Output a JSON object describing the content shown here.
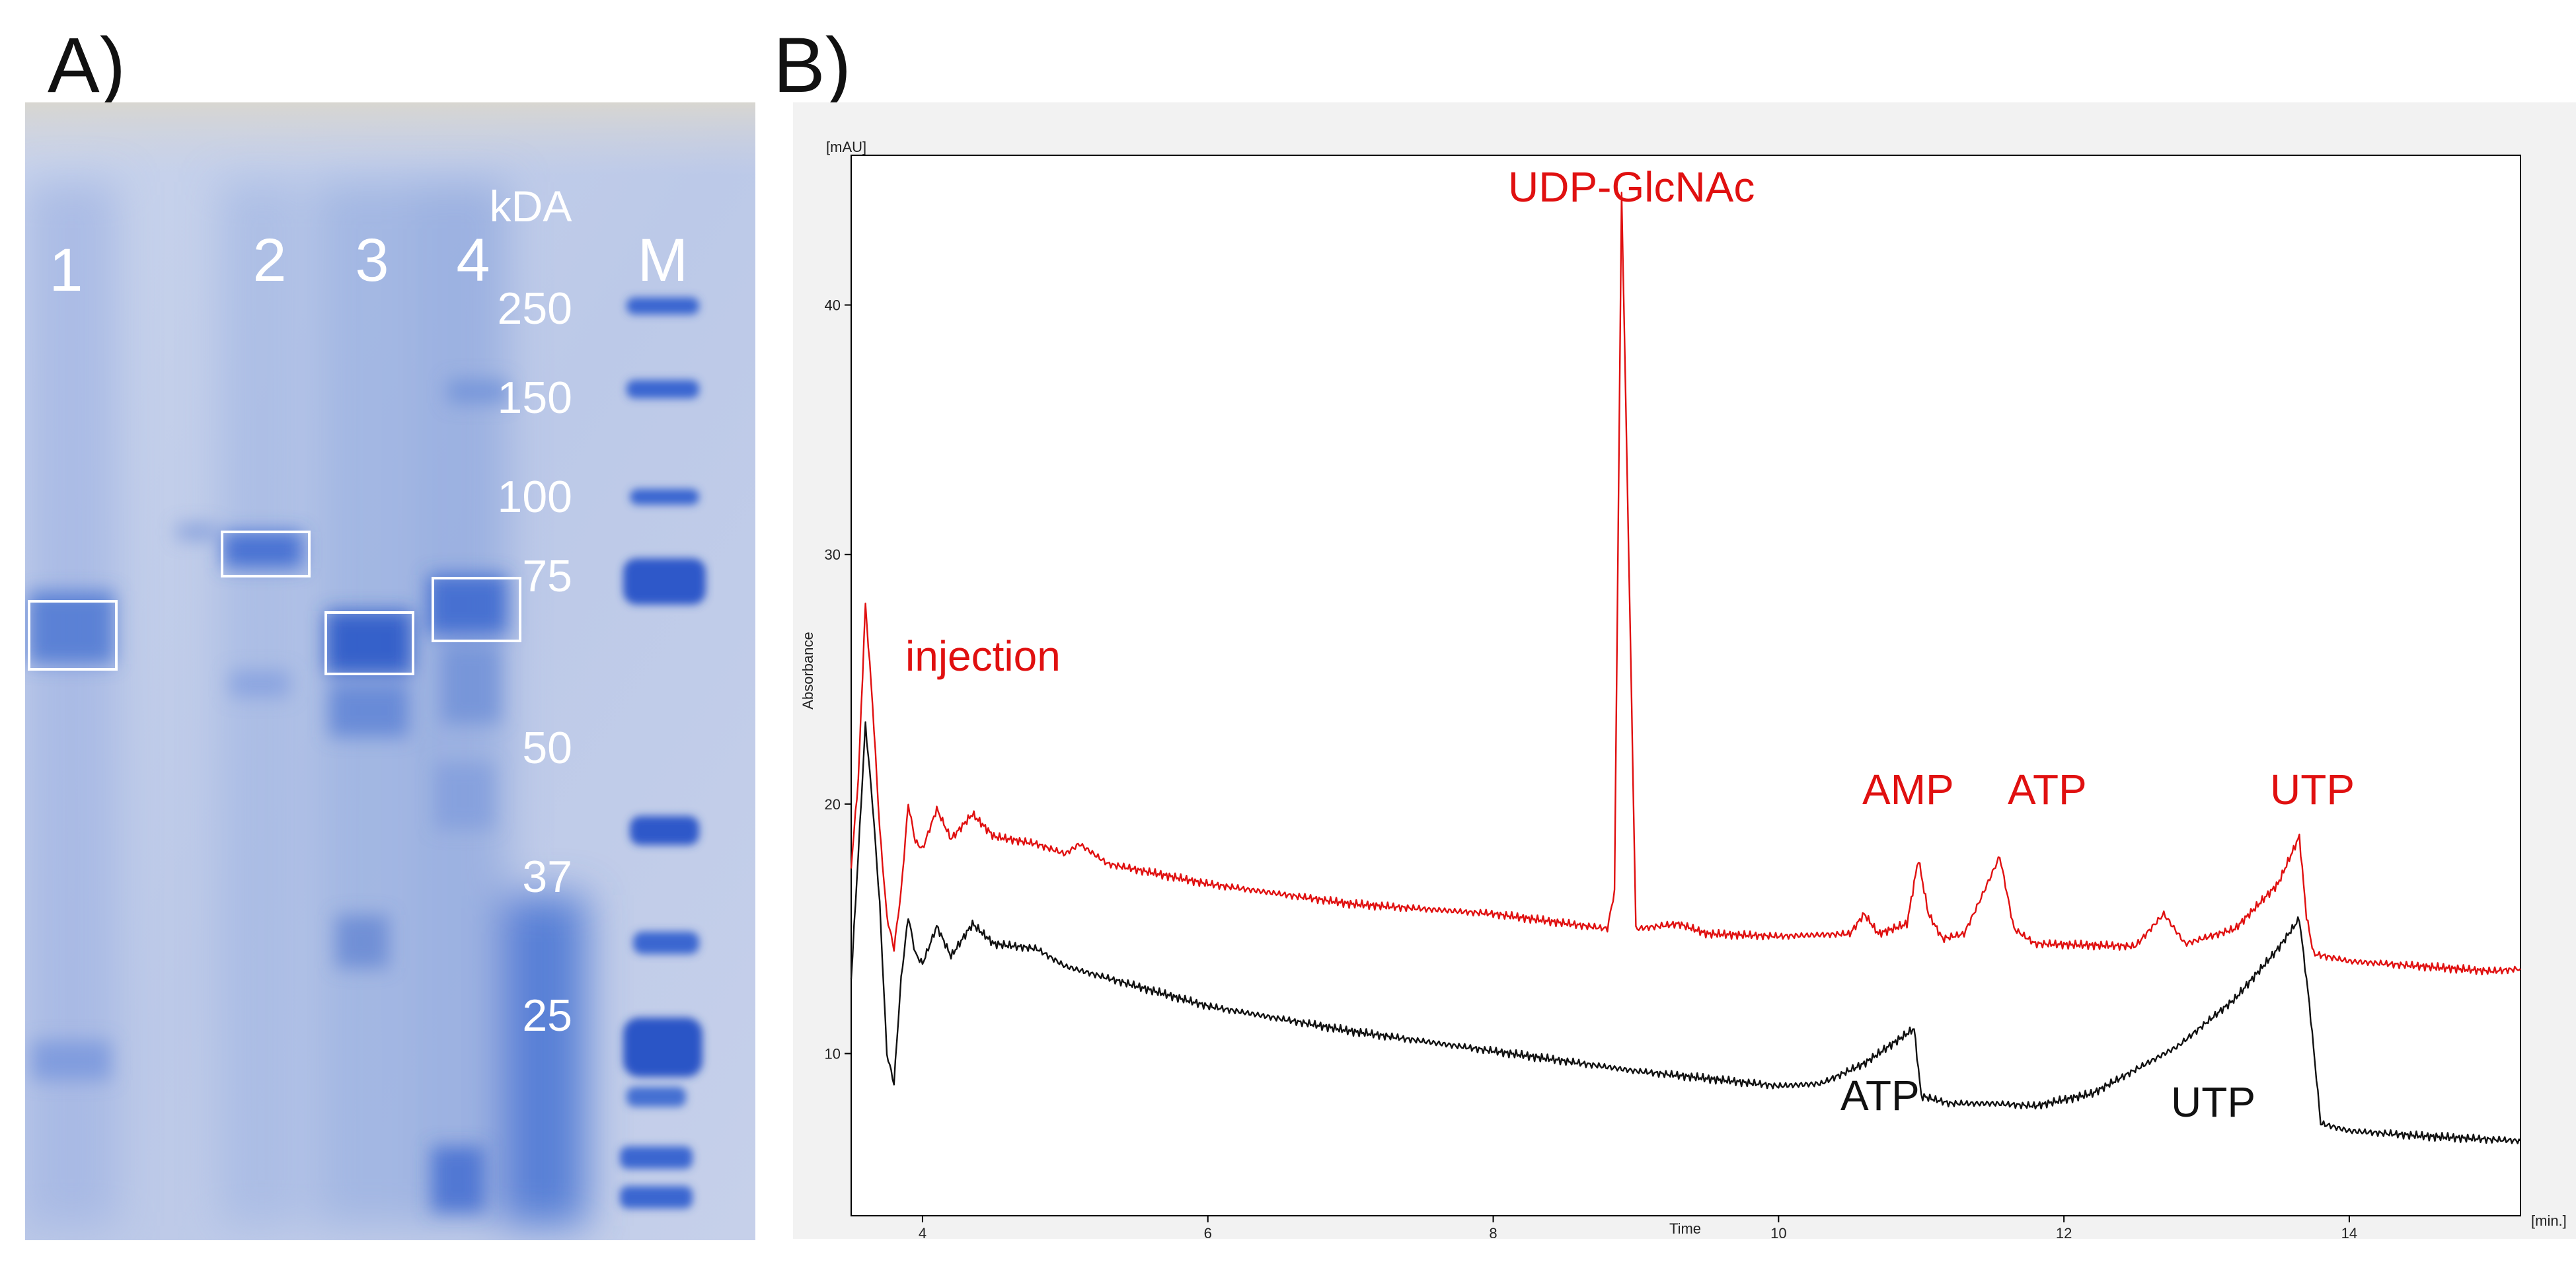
{
  "panels": {
    "a_label": "A)",
    "b_label": "B)"
  },
  "gel": {
    "lanes": [
      "1",
      "2",
      "3",
      "4",
      "M"
    ],
    "kda_label": "kDA",
    "markers": [
      "250",
      "150",
      "100",
      "75",
      "50",
      "37",
      "25"
    ],
    "colors": {
      "gel_blue": "#3f6fd0",
      "box": "#ffffff"
    }
  },
  "chart_data": {
    "type": "line",
    "xlabel": "Time",
    "ylabel": "Absorbance",
    "x_unit": "[min.]",
    "y_unit": "[mAU]",
    "xlim": [
      3.5,
      15.2
    ],
    "ylim": [
      3.5,
      46
    ],
    "x_ticks": [
      "4",
      "6",
      "8",
      "10",
      "12",
      "14"
    ],
    "y_ticks": [
      "10",
      "20",
      "30",
      "40"
    ],
    "series": [
      {
        "color": "#e01010",
        "points": [
          [
            3.5,
            17.5
          ],
          [
            3.55,
            21
          ],
          [
            3.6,
            28
          ],
          [
            3.65,
            24
          ],
          [
            3.7,
            19
          ],
          [
            3.75,
            15.5
          ],
          [
            3.8,
            14.2
          ],
          [
            3.85,
            16.5
          ],
          [
            3.9,
            20
          ],
          [
            3.95,
            18.5
          ],
          [
            4.0,
            18.2
          ],
          [
            4.1,
            19.8
          ],
          [
            4.2,
            18.6
          ],
          [
            4.35,
            19.6
          ],
          [
            4.5,
            18.7
          ],
          [
            4.8,
            18.4
          ],
          [
            5.0,
            18.0
          ],
          [
            5.1,
            18.4
          ],
          [
            5.3,
            17.6
          ],
          [
            6.0,
            16.8
          ],
          [
            7.0,
            16.0
          ],
          [
            8.0,
            15.6
          ],
          [
            8.8,
            15.0
          ],
          [
            8.85,
            16.5
          ],
          [
            8.9,
            44.5
          ],
          [
            8.95,
            30
          ],
          [
            9.0,
            15.0
          ],
          [
            9.3,
            15.2
          ],
          [
            9.5,
            14.8
          ],
          [
            10.0,
            14.7
          ],
          [
            10.5,
            14.8
          ],
          [
            10.6,
            15.6
          ],
          [
            10.7,
            14.8
          ],
          [
            10.9,
            15.2
          ],
          [
            10.98,
            17.8
          ],
          [
            11.05,
            15.6
          ],
          [
            11.15,
            14.6
          ],
          [
            11.3,
            14.8
          ],
          [
            11.4,
            16.0
          ],
          [
            11.55,
            17.9
          ],
          [
            11.65,
            15.0
          ],
          [
            11.8,
            14.4
          ],
          [
            12.5,
            14.3
          ],
          [
            12.7,
            15.6
          ],
          [
            12.85,
            14.4
          ],
          [
            13.2,
            15.0
          ],
          [
            13.5,
            16.8
          ],
          [
            13.65,
            18.7
          ],
          [
            13.7,
            15.5
          ],
          [
            13.75,
            14.0
          ],
          [
            14.0,
            13.7
          ],
          [
            15.0,
            13.3
          ],
          [
            15.2,
            13.4
          ]
        ]
      },
      {
        "color": "#111111",
        "points": [
          [
            3.5,
            13.0
          ],
          [
            3.55,
            18
          ],
          [
            3.6,
            23.2
          ],
          [
            3.65,
            20
          ],
          [
            3.7,
            16
          ],
          [
            3.75,
            10
          ],
          [
            3.8,
            8.8
          ],
          [
            3.85,
            13
          ],
          [
            3.9,
            15.5
          ],
          [
            3.95,
            14.0
          ],
          [
            4.0,
            13.6
          ],
          [
            4.1,
            15.1
          ],
          [
            4.2,
            13.9
          ],
          [
            4.35,
            15.2
          ],
          [
            4.5,
            14.4
          ],
          [
            4.8,
            14.2
          ],
          [
            5.0,
            13.5
          ],
          [
            6.0,
            11.9
          ],
          [
            7.0,
            10.9
          ],
          [
            8.0,
            10.1
          ],
          [
            9.0,
            9.3
          ],
          [
            10.0,
            8.7
          ],
          [
            10.3,
            8.8
          ],
          [
            10.6,
            9.6
          ],
          [
            10.95,
            11.0
          ],
          [
            11.0,
            8.3
          ],
          [
            11.2,
            8.0
          ],
          [
            11.5,
            8.0
          ],
          [
            11.8,
            7.9
          ],
          [
            12.2,
            8.4
          ],
          [
            12.8,
            10.3
          ],
          [
            13.2,
            12.2
          ],
          [
            13.5,
            14.2
          ],
          [
            13.65,
            15.4
          ],
          [
            13.72,
            12.0
          ],
          [
            13.8,
            7.2
          ],
          [
            14.0,
            6.9
          ],
          [
            14.5,
            6.7
          ],
          [
            15.2,
            6.5
          ]
        ]
      }
    ],
    "annotations": {
      "injection": "injection",
      "udp": "UDP-GlcNAc",
      "amp": "AMP",
      "atp_red": "ATP",
      "utp_red": "UTP",
      "atp_black": "ATP",
      "utp_black": "UTP"
    }
  }
}
